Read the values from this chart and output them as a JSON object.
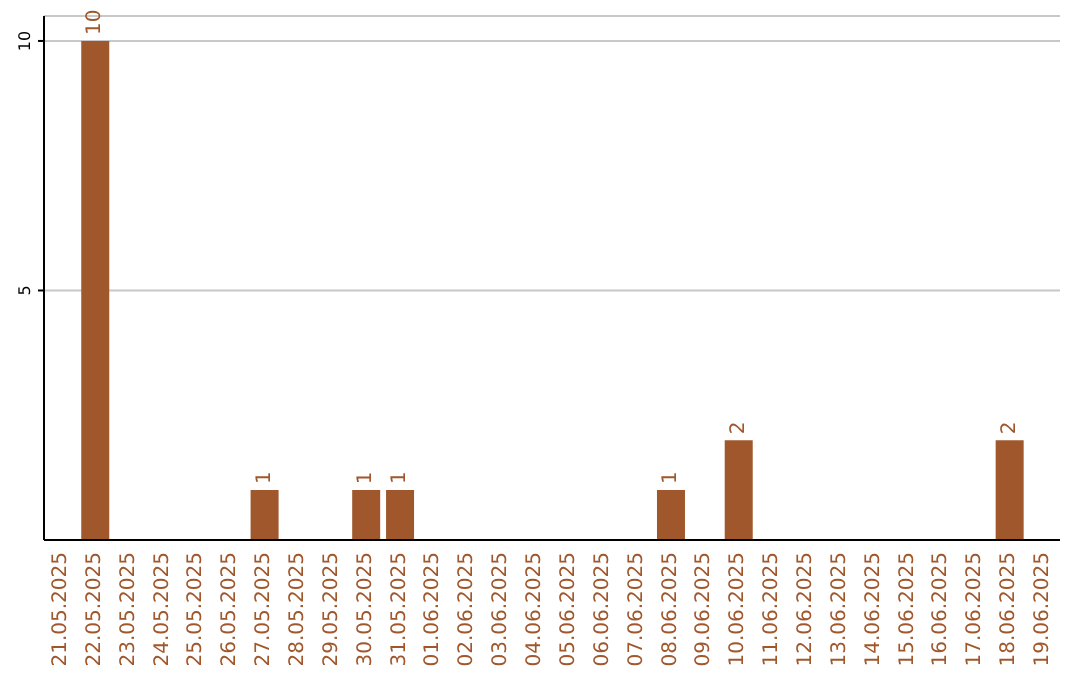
{
  "chart_data": {
    "type": "bar",
    "categories": [
      "21.05.2025",
      "22.05.2025",
      "23.05.2025",
      "24.05.2025",
      "25.05.2025",
      "26.05.2025",
      "27.05.2025",
      "28.05.2025",
      "29.05.2025",
      "30.05.2025",
      "31.05.2025",
      "01.06.2025",
      "02.06.2025",
      "03.06.2025",
      "04.06.2025",
      "05.06.2025",
      "06.06.2025",
      "07.06.2025",
      "08.06.2025",
      "09.06.2025",
      "10.06.2025",
      "11.06.2025",
      "12.06.2025",
      "13.06.2025",
      "14.06.2025",
      "15.06.2025",
      "16.06.2025",
      "17.06.2025",
      "18.06.2025",
      "19.06.2025"
    ],
    "values": [
      0,
      10,
      0,
      0,
      0,
      0,
      1,
      0,
      0,
      1,
      1,
      0,
      0,
      0,
      0,
      0,
      0,
      0,
      1,
      0,
      2,
      0,
      0,
      0,
      0,
      0,
      0,
      0,
      2,
      0
    ],
    "value_labels": [
      null,
      "10",
      null,
      null,
      null,
      null,
      "1",
      null,
      null,
      "1",
      "1",
      null,
      null,
      null,
      null,
      null,
      null,
      null,
      "1",
      null,
      "2",
      null,
      null,
      null,
      null,
      null,
      null,
      null,
      "2",
      null
    ],
    "color": "#a0572b",
    "ylim": [
      0,
      10.5
    ],
    "yticks": [
      5,
      10
    ],
    "grid": "y"
  }
}
